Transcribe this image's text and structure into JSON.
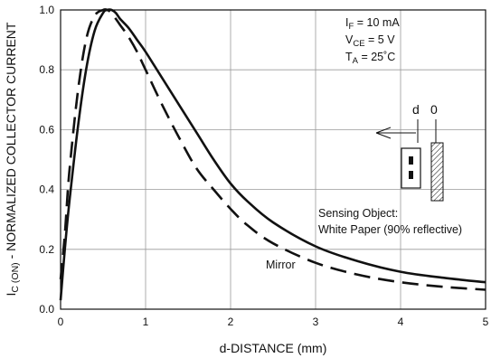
{
  "chart_data": {
    "type": "line",
    "title": "",
    "xlabel": "d-DISTANCE (mm)",
    "ylabel_main": "I",
    "ylabel_sub": "C (ON)",
    "ylabel_rest": " - NORMALIZED COLLECTOR CURRENT",
    "xlim": [
      0,
      5
    ],
    "ylim": [
      0,
      1.0
    ],
    "x_ticks": [
      0,
      1,
      2,
      3,
      4,
      5
    ],
    "x_tick_labels": [
      "0",
      "1",
      "2",
      "3",
      "4",
      "5"
    ],
    "y_ticks": [
      0,
      0.2,
      0.4,
      0.6,
      0.8,
      1.0
    ],
    "y_tick_labels": [
      "0.0",
      "0.2",
      "0.4",
      "0.6",
      "0.8",
      "1.0"
    ],
    "grid": true,
    "conditions": [
      {
        "main": "I",
        "sub": "F",
        "rest": " = 10 mA"
      },
      {
        "main": "V",
        "sub": "CE",
        "rest": " = 5 V"
      },
      {
        "main": "T",
        "sub": "A",
        "rest": " = 25˚C"
      }
    ],
    "annotations": {
      "white_paper_line1": "Sensing Object:",
      "white_paper_line2": "White Paper (90% reflective)",
      "mirror": "Mirror",
      "inset_d": "d",
      "inset_0": "0"
    },
    "series": [
      {
        "label_ref": "white_paper_line2",
        "style": "solid",
        "x": [
          0,
          0.05,
          0.1,
          0.2,
          0.3,
          0.4,
          0.5,
          0.55,
          0.6,
          0.65,
          0.7,
          0.8,
          0.9,
          1.0,
          1.2,
          1.4,
          1.6,
          1.8,
          2.0,
          2.2,
          2.5,
          3.0,
          3.5,
          4.0,
          4.5,
          5.0
        ],
        "y": [
          0.03,
          0.2,
          0.35,
          0.6,
          0.8,
          0.93,
          0.99,
          1.0,
          1.0,
          0.99,
          0.97,
          0.94,
          0.9,
          0.86,
          0.77,
          0.68,
          0.59,
          0.5,
          0.42,
          0.36,
          0.29,
          0.21,
          0.16,
          0.125,
          0.105,
          0.09
        ]
      },
      {
        "label_ref": "mirror",
        "style": "dashed",
        "x": [
          0,
          0.05,
          0.1,
          0.2,
          0.3,
          0.4,
          0.5,
          0.55,
          0.6,
          0.65,
          0.7,
          0.8,
          0.9,
          1.0,
          1.2,
          1.4,
          1.6,
          1.8,
          2.0,
          2.2,
          2.5,
          3.0,
          3.5,
          4.0,
          4.5,
          5.0
        ],
        "y": [
          0.1,
          0.25,
          0.45,
          0.72,
          0.9,
          0.98,
          1.0,
          1.0,
          0.99,
          0.97,
          0.95,
          0.91,
          0.86,
          0.8,
          0.68,
          0.57,
          0.47,
          0.4,
          0.335,
          0.28,
          0.22,
          0.155,
          0.115,
          0.09,
          0.075,
          0.065
        ]
      }
    ]
  }
}
